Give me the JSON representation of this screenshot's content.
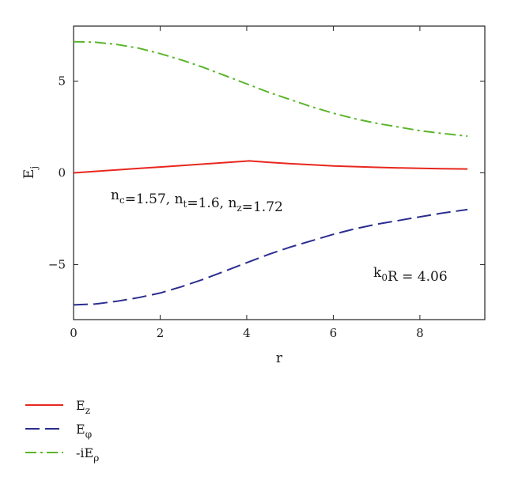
{
  "chart_data": {
    "type": "line",
    "xlabel": "r",
    "ylabel": {
      "base": "E",
      "sub": "j"
    },
    "xlim": [
      0,
      9.5
    ],
    "ylim": [
      -8,
      8
    ],
    "xticks": [
      0,
      2,
      4,
      6,
      8
    ],
    "yticks": [
      -5,
      0,
      5
    ],
    "xtick_labels": [
      "0",
      "2",
      "4",
      "6",
      "8"
    ],
    "ytick_labels": [
      "−5",
      "0",
      "5"
    ],
    "grid": false,
    "legend_position": "bottom-left, below plot",
    "annotations": [
      {
        "parts": [
          {
            "t": "n",
            "sub": "c"
          },
          {
            "t": "=1.57, n",
            "sub": "t"
          },
          {
            "t": "=1.6, n",
            "sub": "z"
          },
          {
            "t": "=1.72"
          }
        ]
      },
      {
        "parts": [
          {
            "t": "k",
            "sub": "0"
          },
          {
            "t": "R = 4.06"
          }
        ]
      }
    ],
    "series": [
      {
        "legend_base": "E",
        "legend_sub": "z",
        "color": "#e8271e",
        "dash": "solid",
        "x": [
          0,
          0.5,
          1,
          1.5,
          2,
          2.5,
          3,
          3.5,
          4.06,
          4.5,
          5,
          5.5,
          6,
          6.5,
          7,
          7.5,
          8,
          8.5,
          9.1
        ],
        "y": [
          0,
          0.08,
          0.16,
          0.24,
          0.32,
          0.4,
          0.48,
          0.56,
          0.65,
          0.58,
          0.5,
          0.44,
          0.38,
          0.34,
          0.3,
          0.27,
          0.25,
          0.23,
          0.21
        ]
      },
      {
        "legend_base": "E",
        "legend_sub": "φ",
        "color": "#2b2d8f",
        "dash": "long-dash",
        "x": [
          0,
          0.5,
          1,
          1.5,
          2,
          2.5,
          3,
          3.5,
          4,
          4.5,
          5,
          5.5,
          6,
          6.5,
          7,
          7.5,
          8,
          8.5,
          9.1
        ],
        "y": [
          -7.2,
          -7.15,
          -7.0,
          -6.8,
          -6.55,
          -6.2,
          -5.8,
          -5.35,
          -4.9,
          -4.45,
          -4.05,
          -3.7,
          -3.35,
          -3.05,
          -2.8,
          -2.6,
          -2.4,
          -2.2,
          -2.0
        ]
      },
      {
        "legend_base": "-iE",
        "legend_sub": "ρ",
        "color": "#5ab52b",
        "dash": "dash-dot",
        "x": [
          0,
          0.5,
          1,
          1.5,
          2,
          2.5,
          3,
          3.5,
          4,
          4.5,
          5,
          5.5,
          6,
          6.5,
          7,
          7.5,
          8,
          8.5,
          9.1
        ],
        "y": [
          7.15,
          7.12,
          7.0,
          6.8,
          6.5,
          6.15,
          5.75,
          5.3,
          4.85,
          4.4,
          4.0,
          3.6,
          3.25,
          2.95,
          2.7,
          2.5,
          2.3,
          2.15,
          2.0
        ]
      }
    ]
  }
}
